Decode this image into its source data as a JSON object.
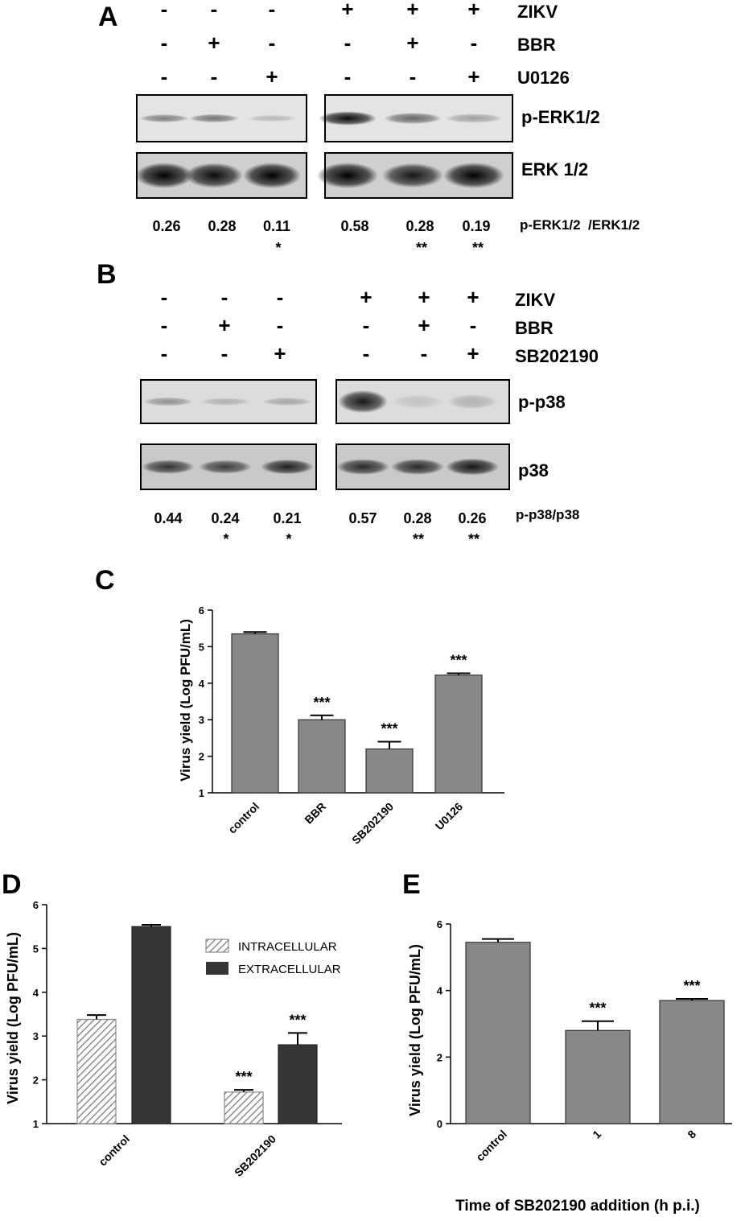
{
  "panel_labels": [
    "A",
    "B",
    "C",
    "D",
    "E"
  ],
  "panel_A": {
    "rows": [
      {
        "label": "ZIKV",
        "signs": [
          "-",
          "-",
          "-",
          "+",
          "+",
          "+"
        ]
      },
      {
        "label": "BBR",
        "signs": [
          "-",
          "+",
          "-",
          "-",
          "+",
          "-"
        ]
      },
      {
        "label": "U0126",
        "signs": [
          "-",
          "-",
          "+",
          "-",
          "-",
          "+"
        ]
      }
    ],
    "blot_labels": [
      "p-ERK1/2",
      "ERK 1/2"
    ],
    "ratio_label": "p-ERK1/2  /ERK1/2",
    "ratios": [
      "0.26",
      "0.28",
      "0.11",
      "0.58",
      "0.28",
      "0.19"
    ],
    "stars": [
      "",
      "",
      "*",
      "",
      "**",
      "**"
    ],
    "band_intensity_top": [
      0.45,
      0.5,
      0.2,
      0.95,
      0.55,
      0.3
    ],
    "band_intensity_bottom": [
      1,
      0.95,
      1,
      1,
      0.9,
      1
    ]
  },
  "panel_B": {
    "rows": [
      {
        "label": "ZIKV",
        "signs": [
          "-",
          "-",
          "-",
          "+",
          "+",
          "+"
        ]
      },
      {
        "label": "BBR",
        "signs": [
          "-",
          "+",
          "-",
          "-",
          "+",
          "-"
        ]
      },
      {
        "label": "SB202190",
        "signs": [
          "-",
          "-",
          "+",
          "-",
          "-",
          "+"
        ]
      }
    ],
    "blot_labels": [
      "p-p38",
      "p38"
    ],
    "ratio_label": "p-p38/p38",
    "ratios": [
      "0.44",
      "0.24",
      "0.21",
      "0.57",
      "0.28",
      "0.26"
    ],
    "stars": [
      "",
      "*",
      "*",
      "",
      "**",
      "**"
    ],
    "band_intensity_top": [
      0.35,
      0.2,
      0.25,
      0.9,
      0.12,
      0.2
    ],
    "band_intensity_bottom": [
      0.75,
      0.7,
      0.85,
      0.8,
      0.8,
      0.9
    ]
  },
  "chart_data": [
    {
      "id": "C",
      "type": "bar",
      "categories": [
        "control",
        "BBR",
        "SB202190",
        "U0126"
      ],
      "values": [
        5.35,
        3.0,
        2.2,
        4.22
      ],
      "errors": [
        0.05,
        0.12,
        0.2,
        0.05
      ],
      "significance": [
        "",
        "***",
        "***",
        "***"
      ],
      "ylabel": "Virus yield (Log PFU/mL)",
      "xlabel": "",
      "ylim": [
        1,
        6
      ],
      "yticks": [
        "1",
        "2",
        "3",
        "4",
        "5",
        "6"
      ],
      "color": "#888888"
    },
    {
      "id": "D",
      "type": "bar",
      "categories": [
        "control",
        "SB202190"
      ],
      "series": [
        {
          "name": "INTRACELLULAR",
          "values": [
            3.38,
            1.72
          ],
          "errors": [
            0.1,
            0.05
          ],
          "significance": [
            "",
            "***"
          ],
          "pattern": "hatched"
        },
        {
          "name": "EXTRACELLULAR",
          "values": [
            5.5,
            2.8
          ],
          "errors": [
            0.04,
            0.27
          ],
          "significance": [
            "",
            "***"
          ],
          "color": "#353535"
        }
      ],
      "ylabel": "Virus yield (Log PFU/mL)",
      "xlabel": "",
      "ylim": [
        1,
        6
      ],
      "yticks": [
        "1",
        "2",
        "3",
        "4",
        "5",
        "6"
      ],
      "legend": "top-right"
    },
    {
      "id": "E",
      "type": "bar",
      "categories": [
        "control",
        "1",
        "8"
      ],
      "values": [
        5.45,
        2.8,
        3.7
      ],
      "errors": [
        0.1,
        0.28,
        0.05
      ],
      "significance": [
        "",
        "***",
        "***"
      ],
      "ylabel": "Virus yield (Log PFU/mL)",
      "xlabel": "Time of SB202190 addition (h p.i.)",
      "ylim": [
        0,
        6
      ],
      "yticks": [
        "0",
        "2",
        "4",
        "6"
      ],
      "color": "#888888"
    }
  ]
}
